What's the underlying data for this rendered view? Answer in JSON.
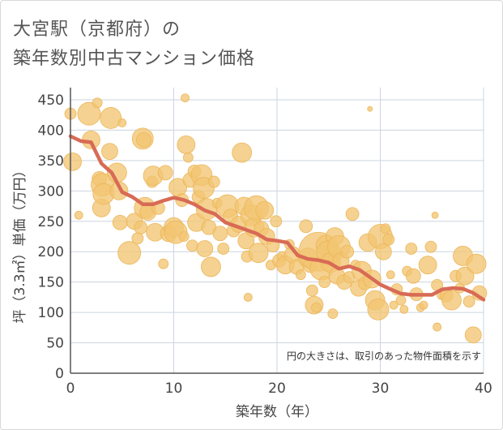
{
  "title_line1": "大宮駅（京都府）の",
  "title_line2": "築年数別中古マンション価格",
  "note": "円の大きさは、取引のあった物件面積を示す",
  "colors": {
    "bubble": "#f2c572",
    "bubble_stroke": "#ecb65a",
    "line": "#d86b55",
    "grid": "#cbd5df"
  },
  "chart_data": {
    "type": "scatter",
    "xlabel": "築年数（年）",
    "ylabel": "坪（3.3㎡）単価（万円）",
    "xlim": [
      0,
      40
    ],
    "ylim": [
      0,
      470
    ],
    "x_ticks": [
      "0",
      "10",
      "20",
      "30",
      "40"
    ],
    "x_tick_values": [
      0,
      10,
      20,
      30,
      40
    ],
    "y_ticks": [
      "0",
      "50",
      "100",
      "150",
      "200",
      "250",
      "300",
      "350",
      "400",
      "450"
    ],
    "y_tick_values": [
      0,
      50,
      100,
      150,
      200,
      250,
      300,
      350,
      400,
      450
    ],
    "grid": true,
    "trend": {
      "x": [
        0,
        1,
        2,
        3,
        4,
        5,
        6,
        7,
        8,
        9,
        10,
        11,
        12,
        13,
        14,
        15,
        16,
        17,
        18,
        19,
        20,
        21,
        22,
        23,
        24,
        25,
        26,
        27,
        28,
        29,
        30,
        31,
        32,
        33,
        34,
        35,
        36,
        37,
        38,
        39,
        40
      ],
      "y": [
        390,
        382,
        380,
        345,
        330,
        298,
        290,
        278,
        278,
        284,
        289,
        285,
        278,
        268,
        262,
        248,
        242,
        236,
        230,
        220,
        218,
        215,
        194,
        188,
        186,
        182,
        172,
        176,
        170,
        158,
        146,
        138,
        131,
        129,
        129,
        129,
        138,
        140,
        139,
        132,
        121
      ]
    },
    "points": [
      {
        "x": 0.0,
        "y": 427,
        "s": 7
      },
      {
        "x": 0.2,
        "y": 348,
        "s": 11
      },
      {
        "x": 0.8,
        "y": 260,
        "s": 5
      },
      {
        "x": 1.8,
        "y": 427,
        "s": 14
      },
      {
        "x": 2.0,
        "y": 384,
        "s": 11
      },
      {
        "x": 2.6,
        "y": 445,
        "s": 6
      },
      {
        "x": 2.8,
        "y": 320,
        "s": 9
      },
      {
        "x": 3.0,
        "y": 272,
        "s": 11
      },
      {
        "x": 3.1,
        "y": 310,
        "s": 14
      },
      {
        "x": 3.2,
        "y": 295,
        "s": 13
      },
      {
        "x": 3.8,
        "y": 365,
        "s": 10
      },
      {
        "x": 3.9,
        "y": 420,
        "s": 13
      },
      {
        "x": 4.5,
        "y": 330,
        "s": 12
      },
      {
        "x": 4.7,
        "y": 300,
        "s": 11
      },
      {
        "x": 4.8,
        "y": 248,
        "s": 9
      },
      {
        "x": 5.0,
        "y": 412,
        "s": 5
      },
      {
        "x": 5.7,
        "y": 198,
        "s": 14
      },
      {
        "x": 6.2,
        "y": 250,
        "s": 10
      },
      {
        "x": 6.5,
        "y": 222,
        "s": 7
      },
      {
        "x": 6.8,
        "y": 240,
        "s": 8
      },
      {
        "x": 7.0,
        "y": 386,
        "s": 13
      },
      {
        "x": 7.1,
        "y": 384,
        "s": 9
      },
      {
        "x": 7.2,
        "y": 272,
        "s": 13
      },
      {
        "x": 7.5,
        "y": 265,
        "s": 10
      },
      {
        "x": 7.9,
        "y": 315,
        "s": 7
      },
      {
        "x": 8.0,
        "y": 325,
        "s": 12
      },
      {
        "x": 8.2,
        "y": 232,
        "s": 11
      },
      {
        "x": 8.5,
        "y": 272,
        "s": 8
      },
      {
        "x": 9.0,
        "y": 180,
        "s": 6
      },
      {
        "x": 9.2,
        "y": 330,
        "s": 9
      },
      {
        "x": 9.5,
        "y": 230,
        "s": 10
      },
      {
        "x": 10.0,
        "y": 240,
        "s": 12
      },
      {
        "x": 10.2,
        "y": 232,
        "s": 14
      },
      {
        "x": 10.4,
        "y": 306,
        "s": 11
      },
      {
        "x": 10.8,
        "y": 285,
        "s": 8
      },
      {
        "x": 11.0,
        "y": 225,
        "s": 6
      },
      {
        "x": 11.1,
        "y": 453,
        "s": 5
      },
      {
        "x": 11.2,
        "y": 376,
        "s": 11
      },
      {
        "x": 11.4,
        "y": 355,
        "s": 6
      },
      {
        "x": 11.6,
        "y": 318,
        "s": 9
      },
      {
        "x": 11.8,
        "y": 210,
        "s": 7
      },
      {
        "x": 12.0,
        "y": 332,
        "s": 8
      },
      {
        "x": 12.2,
        "y": 248,
        "s": 11
      },
      {
        "x": 12.4,
        "y": 290,
        "s": 8
      },
      {
        "x": 12.7,
        "y": 326,
        "s": 13
      },
      {
        "x": 12.9,
        "y": 305,
        "s": 13
      },
      {
        "x": 13.0,
        "y": 205,
        "s": 10
      },
      {
        "x": 13.2,
        "y": 270,
        "s": 13
      },
      {
        "x": 13.4,
        "y": 240,
        "s": 9
      },
      {
        "x": 13.6,
        "y": 175,
        "s": 12
      },
      {
        "x": 13.9,
        "y": 315,
        "s": 7
      },
      {
        "x": 14.2,
        "y": 280,
        "s": 6
      },
      {
        "x": 14.5,
        "y": 230,
        "s": 9
      },
      {
        "x": 14.8,
        "y": 205,
        "s": 7
      },
      {
        "x": 15.2,
        "y": 275,
        "s": 14
      },
      {
        "x": 15.5,
        "y": 258,
        "s": 9
      },
      {
        "x": 15.8,
        "y": 235,
        "s": 8
      },
      {
        "x": 16.3,
        "y": 245,
        "s": 10
      },
      {
        "x": 16.6,
        "y": 363,
        "s": 12
      },
      {
        "x": 16.8,
        "y": 275,
        "s": 11
      },
      {
        "x": 17.0,
        "y": 218,
        "s": 10
      },
      {
        "x": 17.1,
        "y": 192,
        "s": 7
      },
      {
        "x": 17.2,
        "y": 125,
        "s": 5
      },
      {
        "x": 17.5,
        "y": 260,
        "s": 13
      },
      {
        "x": 17.8,
        "y": 240,
        "s": 12
      },
      {
        "x": 18.0,
        "y": 272,
        "s": 15
      },
      {
        "x": 18.2,
        "y": 198,
        "s": 12
      },
      {
        "x": 18.5,
        "y": 238,
        "s": 9
      },
      {
        "x": 18.8,
        "y": 268,
        "s": 11
      },
      {
        "x": 19.0,
        "y": 225,
        "s": 10
      },
      {
        "x": 19.4,
        "y": 178,
        "s": 6
      },
      {
        "x": 19.6,
        "y": 210,
        "s": 8
      },
      {
        "x": 19.9,
        "y": 250,
        "s": 7
      },
      {
        "x": 20.2,
        "y": 185,
        "s": 8
      },
      {
        "x": 20.5,
        "y": 192,
        "s": 6
      },
      {
        "x": 20.8,
        "y": 178,
        "s": 11
      },
      {
        "x": 21.2,
        "y": 212,
        "s": 6
      },
      {
        "x": 21.5,
        "y": 195,
        "s": 10
      },
      {
        "x": 21.9,
        "y": 175,
        "s": 9
      },
      {
        "x": 22.3,
        "y": 162,
        "s": 6
      },
      {
        "x": 22.8,
        "y": 242,
        "s": 8
      },
      {
        "x": 23.0,
        "y": 190,
        "s": 12
      },
      {
        "x": 23.2,
        "y": 178,
        "s": 9
      },
      {
        "x": 23.4,
        "y": 136,
        "s": 7
      },
      {
        "x": 23.6,
        "y": 112,
        "s": 11
      },
      {
        "x": 23.8,
        "y": 108,
        "s": 6
      },
      {
        "x": 24.0,
        "y": 200,
        "s": 24
      },
      {
        "x": 24.3,
        "y": 172,
        "s": 14
      },
      {
        "x": 24.6,
        "y": 150,
        "s": 7
      },
      {
        "x": 24.8,
        "y": 210,
        "s": 13
      },
      {
        "x": 25.0,
        "y": 198,
        "s": 15
      },
      {
        "x": 25.2,
        "y": 182,
        "s": 12
      },
      {
        "x": 25.4,
        "y": 98,
        "s": 6
      },
      {
        "x": 25.6,
        "y": 225,
        "s": 11
      },
      {
        "x": 25.8,
        "y": 160,
        "s": 10
      },
      {
        "x": 26.0,
        "y": 208,
        "s": 14
      },
      {
        "x": 26.2,
        "y": 185,
        "s": 10
      },
      {
        "x": 26.5,
        "y": 150,
        "s": 9
      },
      {
        "x": 26.8,
        "y": 200,
        "s": 8
      },
      {
        "x": 27.0,
        "y": 158,
        "s": 7
      },
      {
        "x": 27.3,
        "y": 262,
        "s": 8
      },
      {
        "x": 27.6,
        "y": 178,
        "s": 6
      },
      {
        "x": 27.9,
        "y": 140,
        "s": 10
      },
      {
        "x": 28.2,
        "y": 168,
        "s": 12
      },
      {
        "x": 28.5,
        "y": 148,
        "s": 8
      },
      {
        "x": 28.8,
        "y": 215,
        "s": 11
      },
      {
        "x": 29.0,
        "y": 435,
        "s": 3
      },
      {
        "x": 29.2,
        "y": 155,
        "s": 11
      },
      {
        "x": 29.5,
        "y": 120,
        "s": 12
      },
      {
        "x": 29.8,
        "y": 105,
        "s": 13
      },
      {
        "x": 30.0,
        "y": 225,
        "s": 15
      },
      {
        "x": 30.3,
        "y": 200,
        "s": 10
      },
      {
        "x": 30.5,
        "y": 238,
        "s": 6
      },
      {
        "x": 30.8,
        "y": 220,
        "s": 7
      },
      {
        "x": 31.0,
        "y": 162,
        "s": 5
      },
      {
        "x": 31.3,
        "y": 112,
        "s": 5
      },
      {
        "x": 31.6,
        "y": 138,
        "s": 7
      },
      {
        "x": 32.0,
        "y": 120,
        "s": 6
      },
      {
        "x": 32.3,
        "y": 105,
        "s": 5
      },
      {
        "x": 32.6,
        "y": 168,
        "s": 6
      },
      {
        "x": 33.0,
        "y": 205,
        "s": 7
      },
      {
        "x": 33.2,
        "y": 160,
        "s": 9
      },
      {
        "x": 33.5,
        "y": 130,
        "s": 8
      },
      {
        "x": 33.9,
        "y": 108,
        "s": 5
      },
      {
        "x": 34.2,
        "y": 112,
        "s": 5
      },
      {
        "x": 34.6,
        "y": 178,
        "s": 11
      },
      {
        "x": 34.9,
        "y": 208,
        "s": 7
      },
      {
        "x": 35.3,
        "y": 260,
        "s": 4
      },
      {
        "x": 35.5,
        "y": 145,
        "s": 7
      },
      {
        "x": 35.9,
        "y": 128,
        "s": 5
      },
      {
        "x": 36.4,
        "y": 128,
        "s": 8
      },
      {
        "x": 36.9,
        "y": 120,
        "s": 12
      },
      {
        "x": 37.3,
        "y": 160,
        "s": 7
      },
      {
        "x": 37.7,
        "y": 140,
        "s": 6
      },
      {
        "x": 38.0,
        "y": 193,
        "s": 12
      },
      {
        "x": 38.2,
        "y": 160,
        "s": 11
      },
      {
        "x": 38.6,
        "y": 118,
        "s": 7
      },
      {
        "x": 39.0,
        "y": 63,
        "s": 10
      },
      {
        "x": 39.3,
        "y": 180,
        "s": 12
      },
      {
        "x": 39.6,
        "y": 132,
        "s": 9
      },
      {
        "x": 35.5,
        "y": 76,
        "s": 5
      }
    ]
  }
}
